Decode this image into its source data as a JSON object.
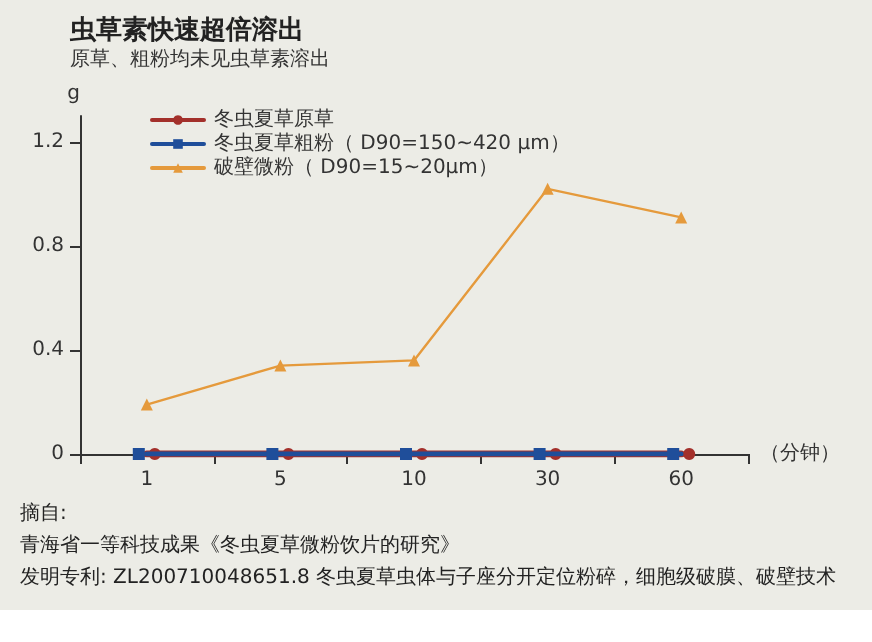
{
  "chart_data": {
    "type": "line",
    "title": "虫草素快速超倍溶出",
    "subtitle": "原草、粗粉均未见虫草素溶出",
    "xlabel": "（分钟）",
    "ylabel": "g",
    "categories": [
      "1",
      "5",
      "10",
      "30",
      "60"
    ],
    "ylim": [
      0,
      1.3
    ],
    "yticks": [
      0,
      0.4,
      0.8,
      1.2
    ],
    "grid": false,
    "legend": "top left",
    "series": [
      {
        "name": "冬虫夏草原草",
        "color": "#a3302b",
        "marker": "circle",
        "values": [
          0,
          0,
          0,
          0,
          0
        ]
      },
      {
        "name": "冬虫夏草粗粉（ D90=150~420 μm）",
        "color": "#1f4e9a",
        "marker": "square",
        "values": [
          0,
          0,
          0,
          0,
          0
        ]
      },
      {
        "name": "破壁微粉（ D90=15~20μm）",
        "color": "#e59a3c",
        "marker": "triangle",
        "values": [
          0.19,
          0.34,
          0.36,
          1.02,
          0.91
        ]
      }
    ],
    "annotations": [
      "摘自:",
      "青海省一等科技成果《冬虫夏草微粉饮片的研究》",
      "发明专利: ZL200710048651.8 冬虫夏草虫体与子座分开定位粉碎，细胞级破膜、破壁技术"
    ]
  }
}
